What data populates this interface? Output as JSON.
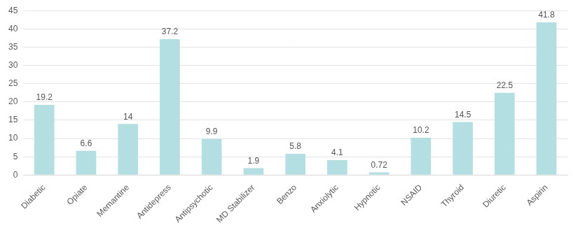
{
  "chart_data": {
    "type": "bar",
    "categories": [
      "Diabetic",
      "Opiate",
      "Memantine",
      "Antidepress",
      "Antipsychotic",
      "MD Stabilizer",
      "Benzo",
      "Anxiolytic",
      "Hypnotic",
      "NSAID",
      "Thyroid",
      "Diuretic",
      "Aspirin"
    ],
    "values": [
      19.2,
      6.6,
      14,
      37.2,
      9.9,
      1.9,
      5.8,
      4.1,
      0.72,
      10.2,
      14.5,
      22.5,
      41.8
    ],
    "color": "#b4dfe2",
    "ylim": [
      0,
      45
    ],
    "yticks": [
      0,
      5,
      10,
      15,
      20,
      25,
      30,
      35,
      40,
      45
    ],
    "grid": true,
    "data_labels": true
  }
}
